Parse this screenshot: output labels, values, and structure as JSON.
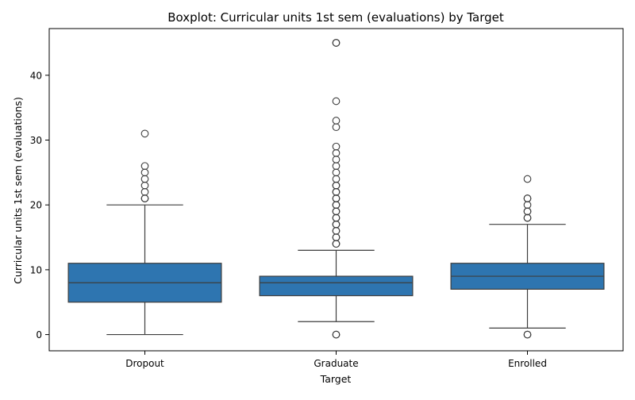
{
  "chart_data": {
    "type": "boxplot",
    "title": "Boxplot: Curricular units 1st sem (evaluations) by Target",
    "xlabel": "Target",
    "ylabel": "Curricular units 1st sem (evaluations)",
    "ylim": [
      -2.5,
      47.2
    ],
    "yticks": [
      0,
      10,
      20,
      30,
      40
    ],
    "grid": false,
    "box_color": "#2e75b0",
    "line_color": "#3d3d3d",
    "categories": [
      "Dropout",
      "Graduate",
      "Enrolled"
    ],
    "boxes": [
      {
        "category": "Dropout",
        "whisker_low": 0,
        "q1": 5,
        "median": 8,
        "q3": 11,
        "whisker_high": 20,
        "outliers": [
          21,
          21,
          22,
          23,
          24,
          25,
          26,
          31
        ]
      },
      {
        "category": "Graduate",
        "whisker_low": 2,
        "q1": 6,
        "median": 8,
        "q3": 9,
        "whisker_high": 13,
        "outliers": [
          0,
          0,
          14,
          14,
          15,
          15,
          16,
          16,
          17,
          17,
          18,
          18,
          19,
          19,
          20,
          20,
          21,
          21,
          22,
          22,
          23,
          23,
          24,
          25,
          26,
          27,
          28,
          29,
          32,
          33,
          36,
          45,
          45
        ]
      },
      {
        "category": "Enrolled",
        "whisker_low": 1,
        "q1": 7,
        "median": 9,
        "q3": 11,
        "whisker_high": 17,
        "outliers": [
          0,
          0,
          18,
          18,
          19,
          19,
          20,
          21,
          21,
          24
        ]
      }
    ]
  }
}
